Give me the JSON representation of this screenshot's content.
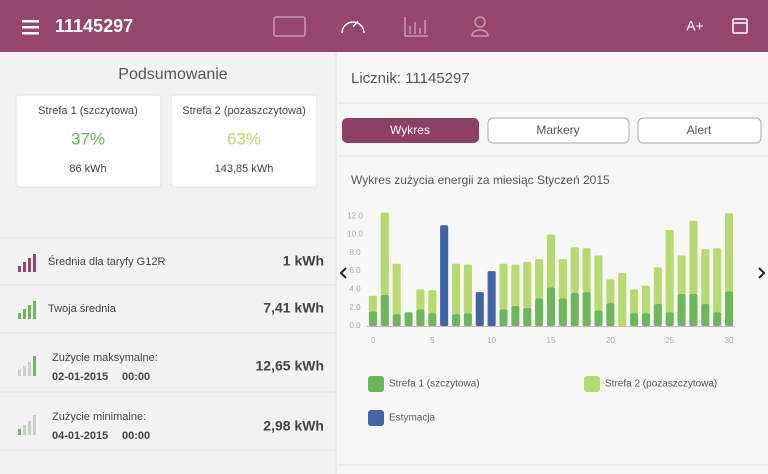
{
  "header": {
    "title": "11145297",
    "font_button": "A+"
  },
  "summary": {
    "title": "Podsumowanie",
    "cards": [
      {
        "label": "Strefa 1 (szczytowa)",
        "percent": "37%",
        "energy": "86 kWh"
      },
      {
        "label": "Strefa 2 (pozaszczytowa)",
        "percent": "63%",
        "energy": "143,85 kWh"
      }
    ]
  },
  "stats": [
    {
      "label": "Średnia dla taryfy G12R",
      "value": "1 kWh"
    },
    {
      "label": "Twoja średnia",
      "value": "7,41 kWh"
    },
    {
      "label": "Zużycie maksymalne:",
      "date": "02-01-2015",
      "time": "00:00",
      "value": "12,65 kWh"
    },
    {
      "label": "Zużycie minimalne:",
      "date": "04-01-2015",
      "time": "00:00",
      "value": "2,98 kWh"
    }
  ],
  "meter": {
    "title": "Licznik: 11145297",
    "tabs": [
      "Wykres",
      "Markery",
      "Alert"
    ]
  },
  "chart_data": {
    "type": "bar",
    "stacked": true,
    "title": "Wykres zużycia energii za miesiąc Styczeń 2015",
    "x": [
      0,
      1,
      2,
      3,
      4,
      5,
      6,
      7,
      8,
      9,
      10,
      11,
      12,
      13,
      14,
      15,
      16,
      17,
      18,
      19,
      20,
      21,
      22,
      23,
      24,
      25,
      26,
      27,
      28,
      29,
      30
    ],
    "xlim": [
      -0.5,
      30.5
    ],
    "xticks": [
      0,
      5,
      10,
      15,
      20,
      25,
      30
    ],
    "ylim": [
      0,
      13
    ],
    "yticks": [
      {
        "value": 0,
        "label": "0.0"
      },
      {
        "value": 2,
        "label": "2.0"
      },
      {
        "value": 4,
        "label": "4.0"
      },
      {
        "value": 6,
        "label": "6.0"
      },
      {
        "value": 8,
        "label": "8.0"
      },
      {
        "value": 10,
        "label": "10.0"
      },
      {
        "value": 12,
        "label": "12.0"
      }
    ],
    "grid": false,
    "series": [
      {
        "name": "Strefa 1 (szczytowa)",
        "color": "#6cb75a",
        "values": [
          1.6,
          3.4,
          1.3,
          1.5,
          1.8,
          1.4,
          null,
          1.3,
          1.4,
          null,
          null,
          1.8,
          2.2,
          2.0,
          3.0,
          4.2,
          3.0,
          3.6,
          3.7,
          1.7,
          2.5,
          null,
          1.4,
          1.4,
          2.4,
          1.5,
          3.5,
          3.5,
          2.4,
          1.5,
          3.8
        ]
      },
      {
        "name": "Strefa 2 (pozaszczytowa)",
        "color": "#b6da6e",
        "values": [
          1.7,
          9.0,
          5.5,
          null,
          2.2,
          2.5,
          null,
          5.5,
          5.3,
          null,
          null,
          5.0,
          4.5,
          5.0,
          4.3,
          5.8,
          4.3,
          5.0,
          4.8,
          6.0,
          2.6,
          5.8,
          2.6,
          3.0,
          4.0,
          9.0,
          4.2,
          8.0,
          6.0,
          7.0,
          8.5
        ]
      },
      {
        "name": "Estymacja",
        "color": "#3f64a8",
        "values": [
          null,
          null,
          null,
          null,
          null,
          null,
          11.0,
          null,
          null,
          3.7,
          6.0,
          null,
          null,
          null,
          null,
          null,
          null,
          null,
          null,
          null,
          null,
          null,
          null,
          null,
          null,
          null,
          null,
          null,
          null,
          null,
          null
        ]
      }
    ]
  }
}
